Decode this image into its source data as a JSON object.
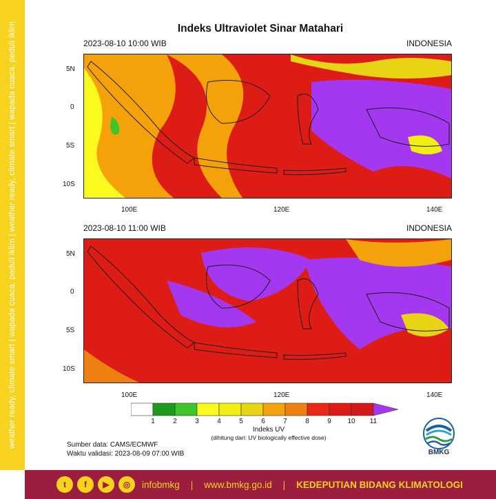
{
  "side_banner": "weather ready, climate smart  |  wapada cuaca, peduli iklim  |  weather ready, climate smart  |  wapada cuaca, peduli iklim",
  "title": "Indeks Ultraviolet Sinar Matahari",
  "maps": [
    {
      "datetime": "2023-08-10  10:00 WIB",
      "region": "INDONESIA"
    },
    {
      "datetime": "2023-08-10  11:00 WIB",
      "region": "INDONESIA"
    }
  ],
  "lat_ticks": [
    "5N",
    "0",
    "5S",
    "10S"
  ],
  "lon_ticks": [
    "100E",
    "120E",
    "140E"
  ],
  "colorbar": {
    "labels": [
      "1",
      "2",
      "3",
      "4",
      "5",
      "6",
      "7",
      "8",
      "9",
      "10",
      "11"
    ],
    "colors": [
      "#ffffff",
      "#1e9a1e",
      "#3fc42a",
      "#fafa1e",
      "#f2ef10",
      "#e8d314",
      "#f5a20a",
      "#ee8012",
      "#ea2818",
      "#dd1c16",
      "#d31a1a",
      "#a438f0"
    ],
    "title": "Indeks UV",
    "note": "(dihitung dari: UV biologically effective dose)"
  },
  "source": "Sumber data: CAMS/ECMWF",
  "validity": "Waktu validasi: 2023-08-09 07:00 WIB",
  "logo_text": "BMKG",
  "footer": {
    "social_icons": [
      "twitter-icon",
      "facebook-icon",
      "youtube-icon",
      "instagram-icon"
    ],
    "handle": "infobmkg",
    "url": "www.bmkg.go.id",
    "dept": "KEDEPUTIAN BIDANG KLIMATOLOGI"
  }
}
